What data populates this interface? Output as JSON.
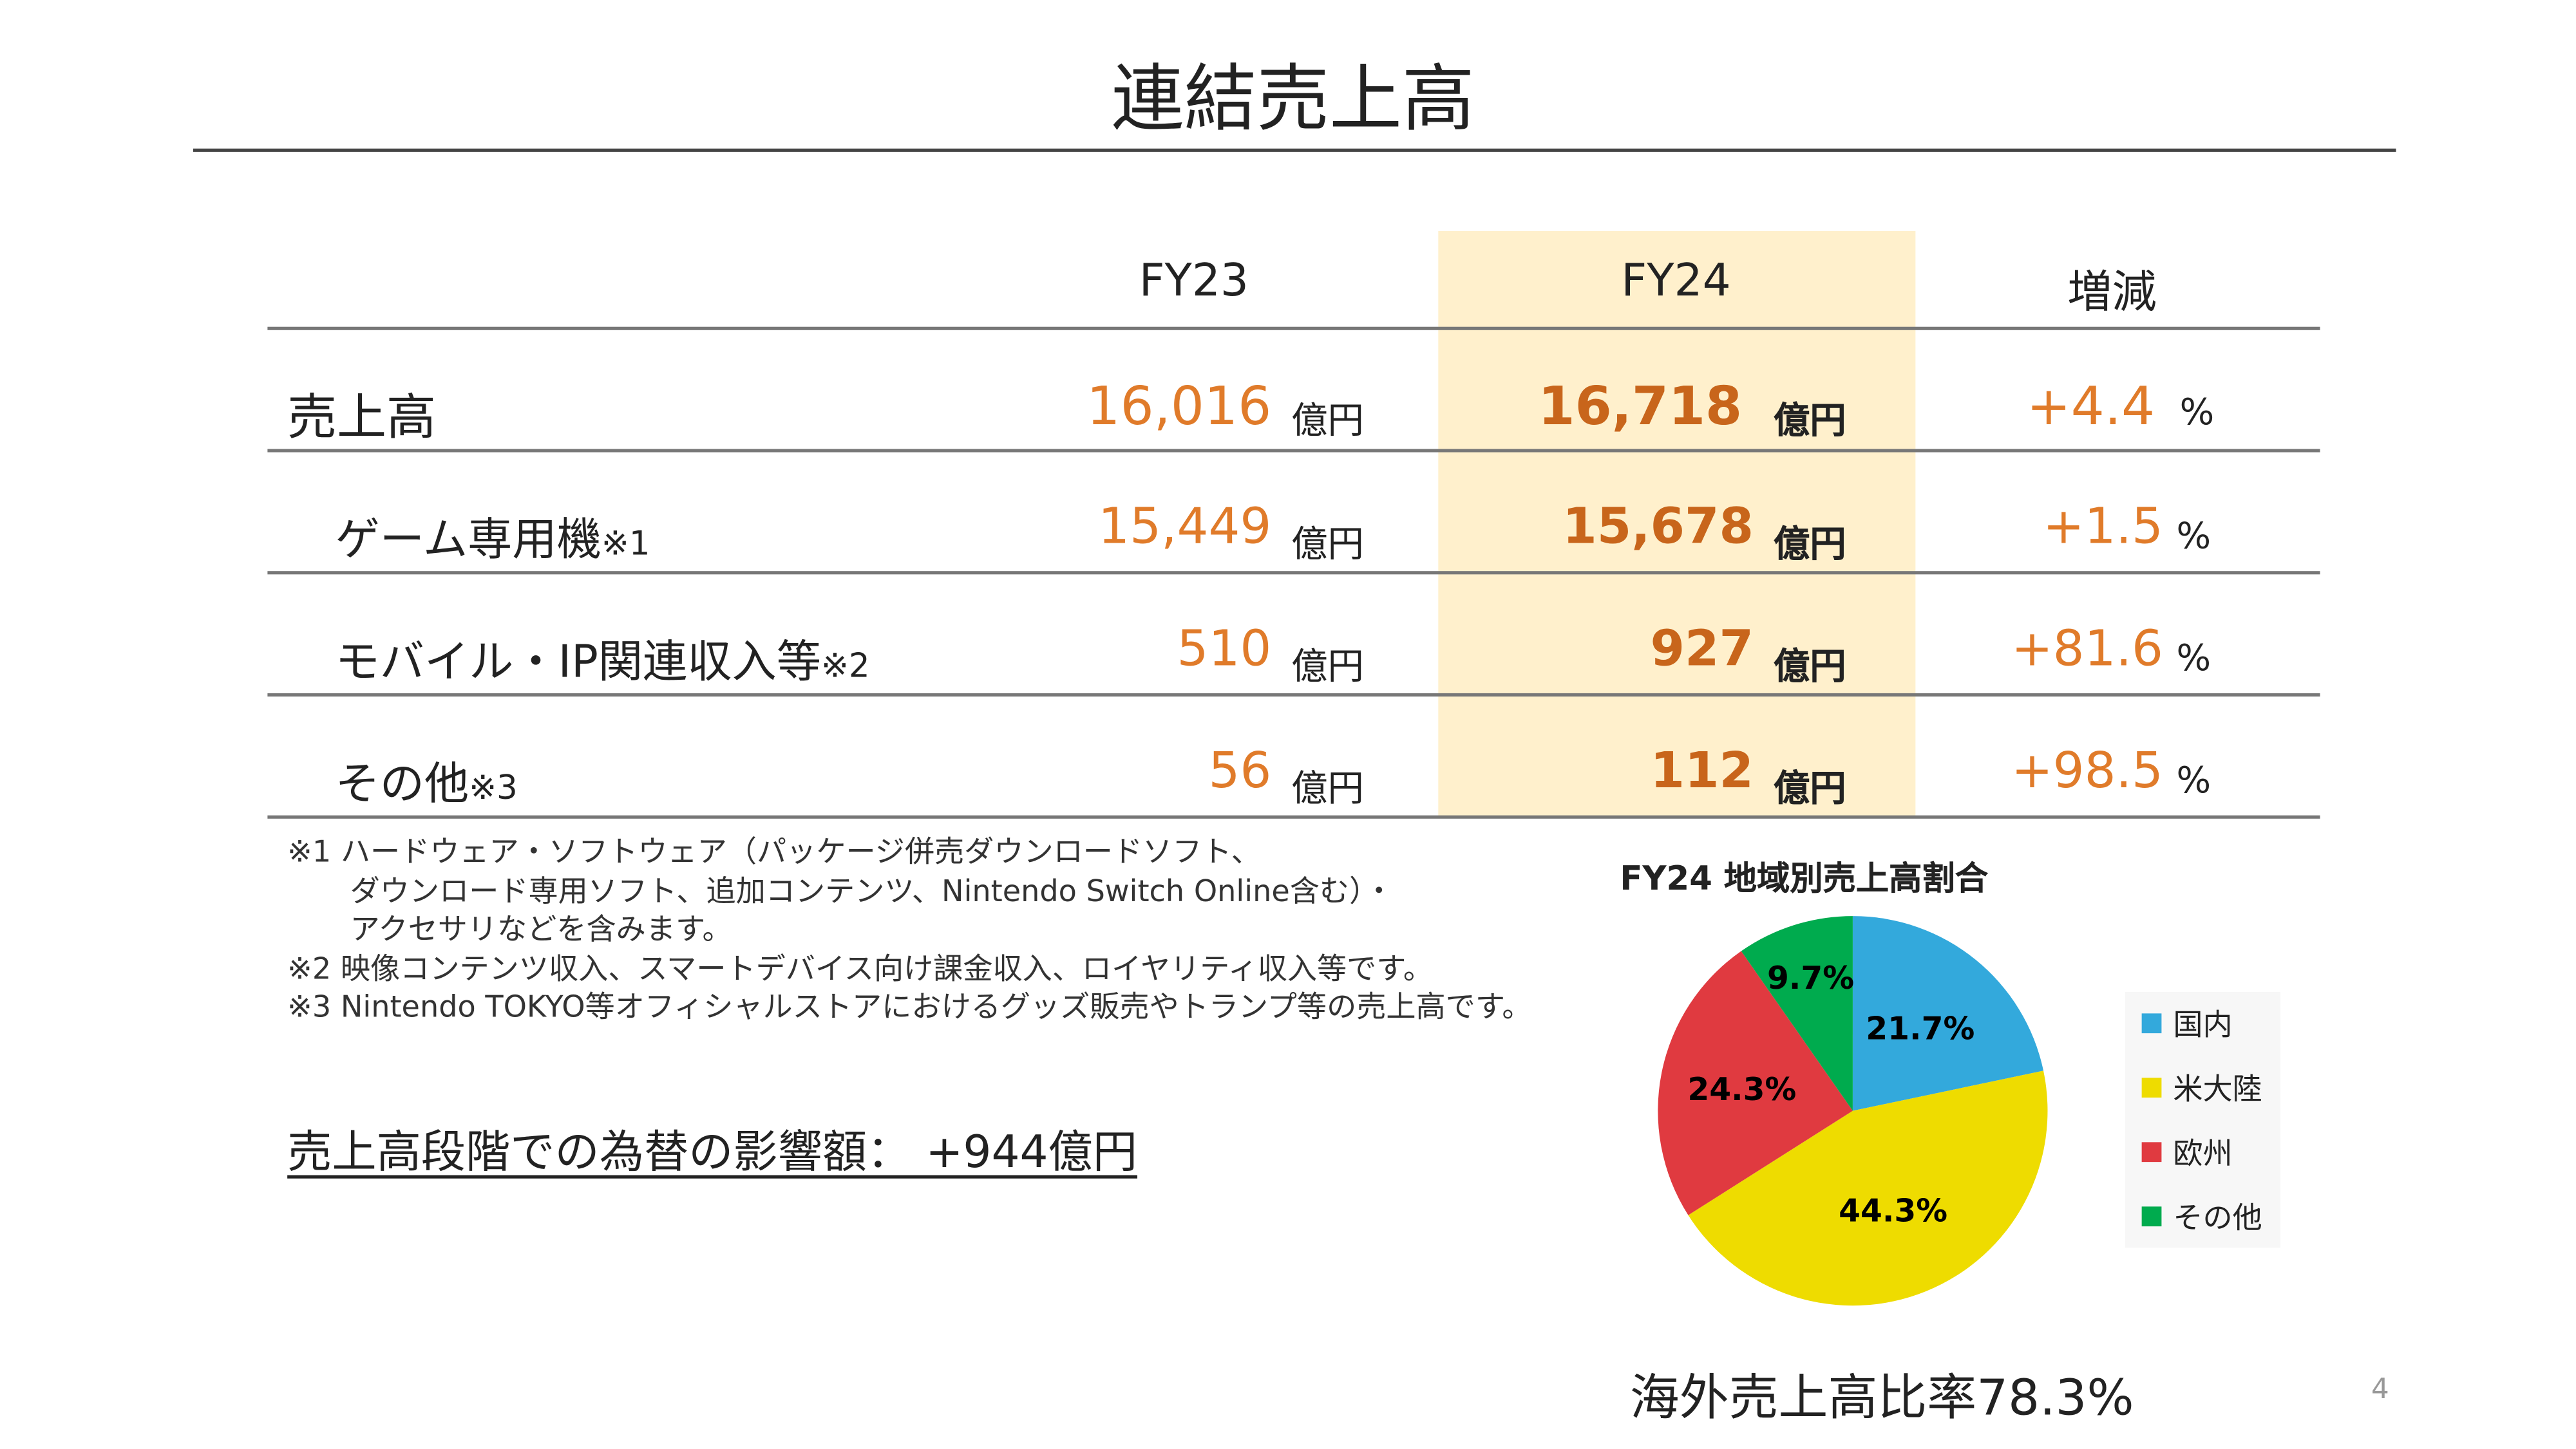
{
  "title": "連結売上高",
  "table": {
    "headers": [
      "FY23",
      "FY24",
      "増減"
    ],
    "rows": [
      {
        "label": "売上高",
        "note": "",
        "fy23": "16,016",
        "fy24": "16,718",
        "change": "+4.4"
      },
      {
        "label": "ゲーム専用機",
        "note": "※1",
        "fy23": "15,449",
        "fy24": "15,678",
        "change": "+1.5"
      },
      {
        "label": "モバイル・IP関連収入等",
        "note": "※2",
        "fy23": "510",
        "fy24": "927",
        "change": "+81.6"
      },
      {
        "label": "その他",
        "note": "※3",
        "fy23": "56",
        "fy24": "112",
        "change": "+98.5"
      }
    ],
    "unit": "億円",
    "pct_unit": "%"
  },
  "footnotes": [
    "※1 ハードウェア・ソフトウェア（パッケージ併売ダウンロードソフト、",
    "ダウンロード専用ソフト、追加コンテンツ、Nintendo Switch Online含む）・",
    "アクセサリなどを含みます。",
    "※2 映像コンテンツ収入、スマートデバイス向け課金収入、ロイヤリティ収入等です。",
    "※3 Nintendo TOKYO等オフィシャルストアにおけるグッズ販売やトランプ等の売上高です。"
  ],
  "fx_impact": "売上高段階での為替の影響額：  +944億円",
  "overseas_ratio": "海外売上高比率78.3%",
  "page_number": "4",
  "colors": {
    "highlight": "#fff0cc",
    "value": "#e07b2a",
    "value_bold": "#c8651b"
  },
  "chart_data": {
    "type": "pie",
    "title": "FY24 地域別売上高割合",
    "categories": [
      "国内",
      "米大陸",
      "欧州",
      "その他"
    ],
    "values": [
      21.7,
      44.3,
      24.3,
      9.7
    ],
    "labels": [
      "21.7%",
      "44.3%",
      "24.3%",
      "9.7%"
    ],
    "colors": [
      "#33a9dc",
      "#eedc00",
      "#e03a40",
      "#00ab4e"
    ],
    "legend": "right"
  }
}
